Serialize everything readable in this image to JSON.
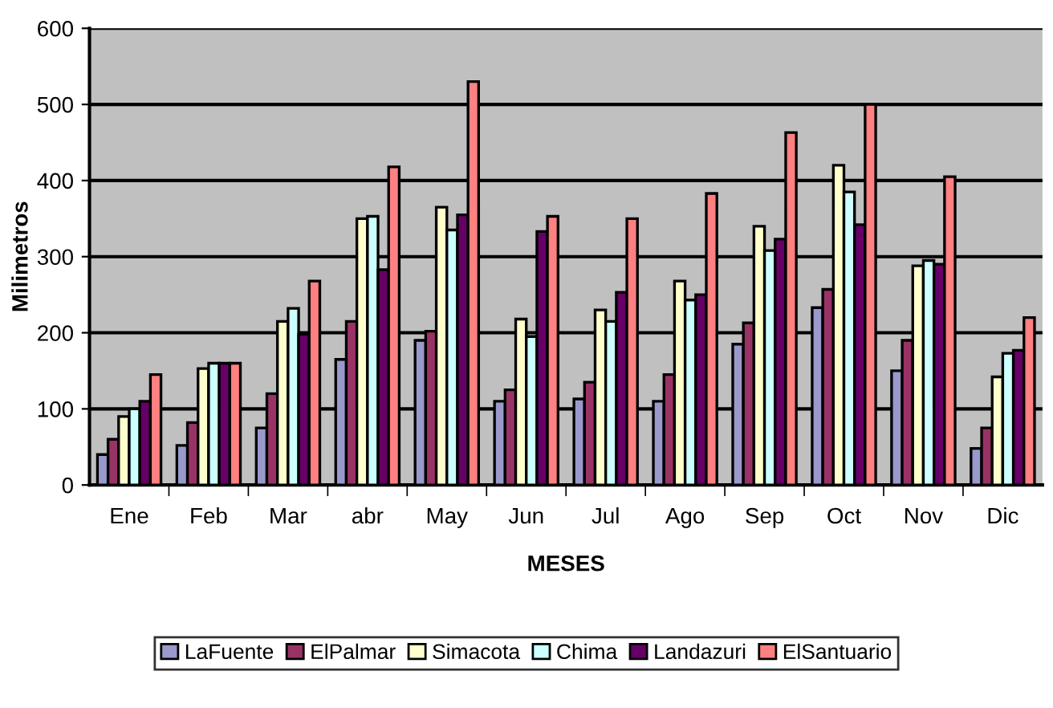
{
  "chart_data": {
    "type": "bar",
    "xlabel": "MESES",
    "ylabel": "Milimetros",
    "categories": [
      "Ene",
      "Feb",
      "Mar",
      "abr",
      "May",
      "Jun",
      "Jul",
      "Ago",
      "Sep",
      "Oct",
      "Nov",
      "Dic"
    ],
    "series": [
      {
        "name": "LaFuente",
        "color": "#9999cc",
        "values": [
          40,
          52,
          75,
          165,
          190,
          110,
          113,
          110,
          185,
          233,
          150,
          48
        ]
      },
      {
        "name": "ElPalmar",
        "color": "#993366",
        "values": [
          60,
          82,
          120,
          215,
          202,
          125,
          135,
          145,
          213,
          257,
          190,
          75
        ]
      },
      {
        "name": "Simacota",
        "color": "#ffffcc",
        "values": [
          90,
          153,
          215,
          350,
          365,
          218,
          230,
          268,
          340,
          420,
          288,
          142
        ]
      },
      {
        "name": "Chima",
        "color": "#ccffff",
        "values": [
          100,
          160,
          232,
          353,
          335,
          195,
          215,
          243,
          308,
          385,
          295,
          173
        ]
      },
      {
        "name": "Landazuri",
        "color": "#660066",
        "values": [
          110,
          160,
          198,
          283,
          355,
          333,
          253,
          250,
          323,
          342,
          290,
          177
        ]
      },
      {
        "name": "ElSantuario",
        "color": "#ff8080",
        "values": [
          145,
          160,
          268,
          418,
          530,
          353,
          350,
          383,
          463,
          500,
          405,
          220
        ]
      }
    ],
    "ylim": [
      0,
      600
    ],
    "yticks": [
      0,
      100,
      200,
      300,
      400,
      500,
      600
    ],
    "grid": "y",
    "legend": "bottom"
  }
}
